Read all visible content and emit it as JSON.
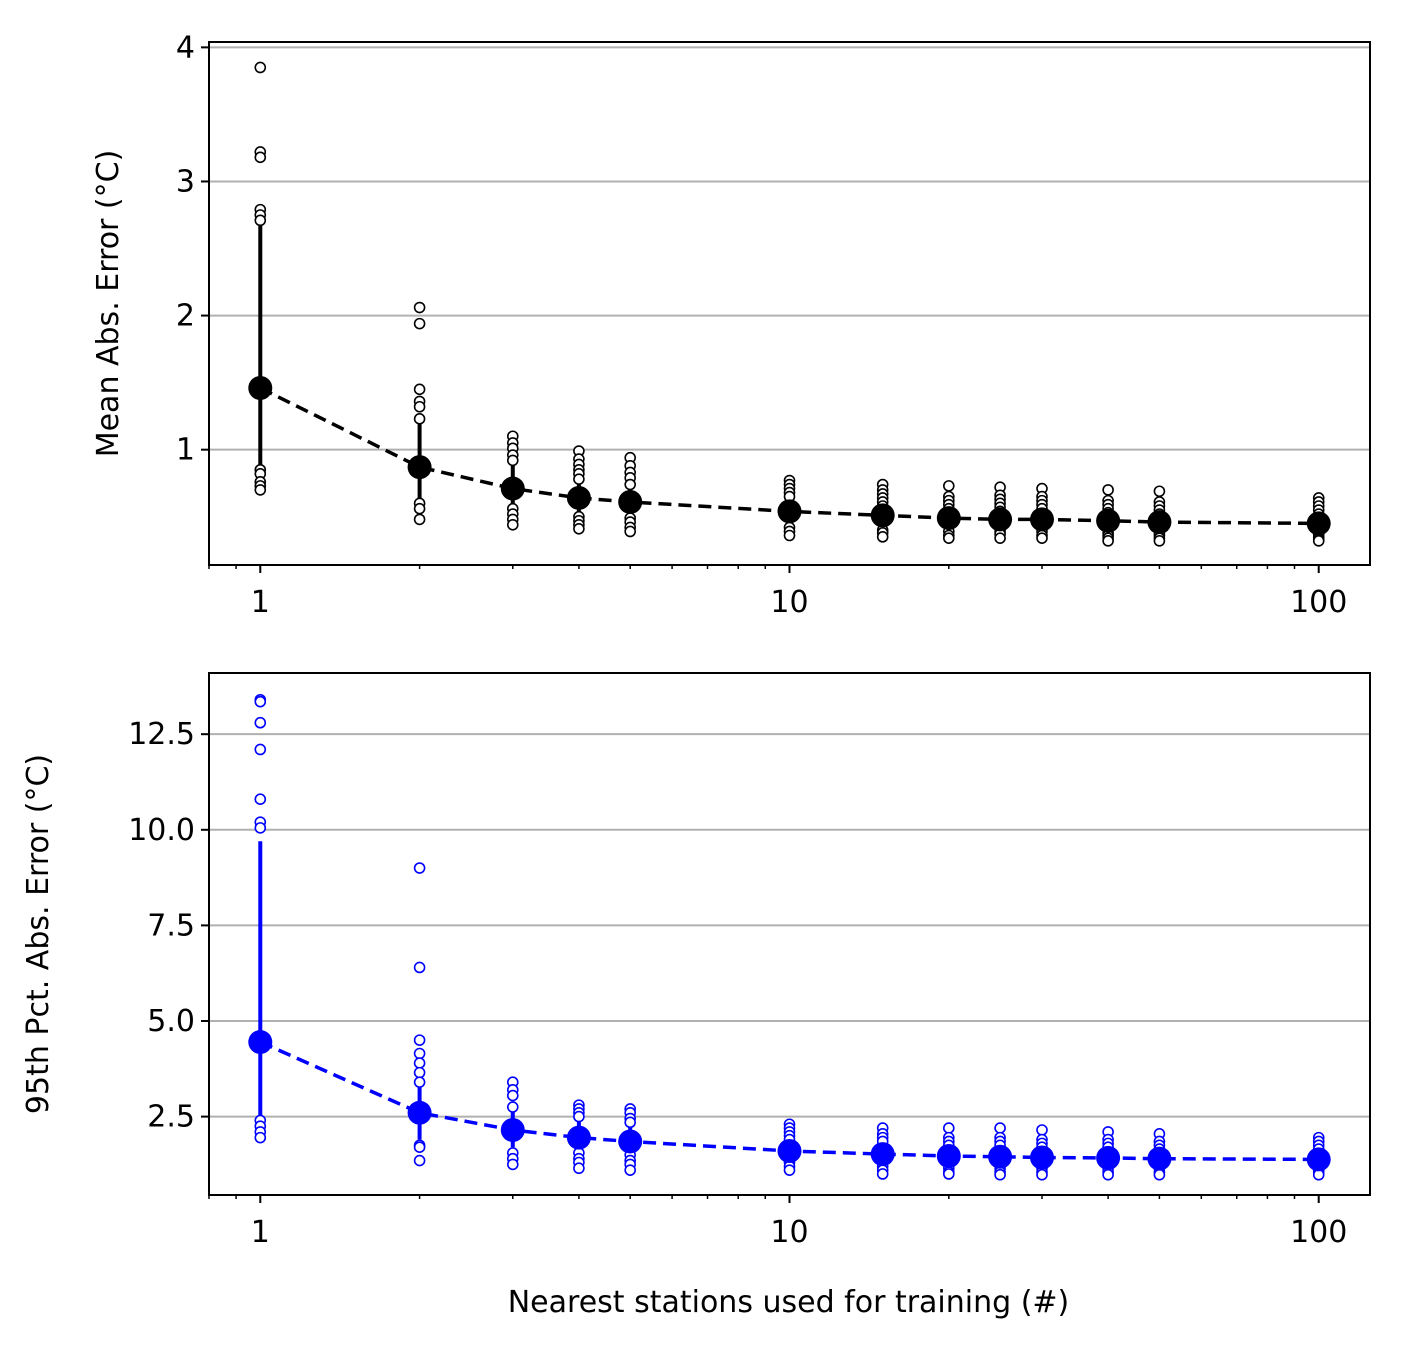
{
  "chart_data": [
    {
      "type": "scatter",
      "xlabel": "",
      "ylabel": "Mean Abs. Error (°C)",
      "xscale": "log",
      "xlim": [
        0.8,
        125
      ],
      "ylim": [
        0.14,
        4.04
      ],
      "xticks": [
        1,
        10,
        100
      ],
      "xtick_labels": [
        "1",
        "10",
        "100"
      ],
      "yticks": [
        1,
        2,
        3,
        4
      ],
      "ytick_labels": [
        "1",
        "2",
        "3",
        "4"
      ],
      "grid": "y",
      "color": "#000000",
      "x": [
        1,
        2,
        3,
        4,
        5,
        10,
        15,
        20,
        25,
        30,
        40,
        50,
        100
      ],
      "mean": [
        1.46,
        0.87,
        0.71,
        0.64,
        0.61,
        0.54,
        0.51,
        0.49,
        0.48,
        0.48,
        0.47,
        0.46,
        0.45
      ],
      "error_low": [
        0.87,
        0.62,
        0.54,
        0.5,
        0.5,
        0.45,
        0.42,
        0.4,
        0.4,
        0.4,
        0.39,
        0.39,
        0.38
      ],
      "error_high": [
        2.7,
        1.2,
        0.93,
        0.81,
        0.76,
        0.66,
        0.6,
        0.58,
        0.57,
        0.57,
        0.56,
        0.56,
        0.54
      ],
      "points": [
        [
          3.85,
          3.22,
          3.18,
          2.79,
          2.75,
          2.71,
          0.85,
          0.82,
          0.76,
          0.73,
          0.7
        ],
        [
          2.06,
          1.94,
          1.45,
          1.36,
          1.32,
          1.23,
          0.6,
          0.56,
          0.48
        ],
        [
          1.1,
          1.05,
          1.01,
          0.96,
          0.92,
          0.56,
          0.52,
          0.48,
          0.44
        ],
        [
          0.99,
          0.93,
          0.89,
          0.85,
          0.82,
          0.78,
          0.5,
          0.47,
          0.44,
          0.41
        ],
        [
          0.94,
          0.88,
          0.83,
          0.79,
          0.74,
          0.49,
          0.46,
          0.42,
          0.39
        ],
        [
          0.77,
          0.74,
          0.71,
          0.68,
          0.65,
          0.42,
          0.39,
          0.36
        ],
        [
          0.74,
          0.7,
          0.67,
          0.64,
          0.61,
          0.58,
          0.4,
          0.38,
          0.35
        ],
        [
          0.73,
          0.65,
          0.62,
          0.59,
          0.56,
          0.39,
          0.36,
          0.34
        ],
        [
          0.72,
          0.66,
          0.63,
          0.6,
          0.57,
          0.54,
          0.39,
          0.37,
          0.34
        ],
        [
          0.71,
          0.65,
          0.62,
          0.59,
          0.56,
          0.39,
          0.36,
          0.34
        ],
        [
          0.7,
          0.62,
          0.59,
          0.56,
          0.53,
          0.38,
          0.36,
          0.34,
          0.32
        ],
        [
          0.69,
          0.61,
          0.58,
          0.55,
          0.52,
          0.38,
          0.36,
          0.34,
          0.32
        ],
        [
          0.64,
          0.61,
          0.58,
          0.55,
          0.52,
          0.37,
          0.35,
          0.33,
          0.32
        ]
      ]
    },
    {
      "type": "scatter",
      "xlabel": "Nearest stations used for training (#)",
      "ylabel": "95th Pct. Abs. Error (°C)",
      "xscale": "log",
      "xlim": [
        0.8,
        125
      ],
      "ylim": [
        0.45,
        14.1
      ],
      "xticks": [
        1,
        10,
        100
      ],
      "xtick_labels": [
        "1",
        "10",
        "100"
      ],
      "yticks": [
        2.5,
        5.0,
        7.5,
        10.0,
        12.5
      ],
      "ytick_labels": [
        "2.5",
        "5.0",
        "7.5",
        "10.0",
        "12.5"
      ],
      "grid": "y",
      "color": "#0000ff",
      "x": [
        1,
        2,
        3,
        4,
        5,
        10,
        15,
        20,
        25,
        30,
        40,
        50,
        100
      ],
      "mean": [
        4.45,
        2.6,
        2.15,
        1.95,
        1.85,
        1.6,
        1.52,
        1.47,
        1.45,
        1.43,
        1.42,
        1.4,
        1.38
      ],
      "error_low": [
        2.5,
        1.9,
        1.7,
        1.6,
        1.55,
        1.35,
        1.3,
        1.25,
        1.25,
        1.22,
        1.2,
        1.2,
        1.18
      ],
      "error_high": [
        9.7,
        3.45,
        2.85,
        2.45,
        2.3,
        2.05,
        1.85,
        1.8,
        1.75,
        1.72,
        1.7,
        1.68,
        1.65
      ],
      "points": [
        [
          13.4,
          13.35,
          12.8,
          12.1,
          10.8,
          10.2,
          10.05,
          2.4,
          2.25,
          2.1,
          1.95
        ],
        [
          9.0,
          6.4,
          4.5,
          4.15,
          3.9,
          3.65,
          3.4,
          1.75,
          1.7,
          1.35
        ],
        [
          3.4,
          3.2,
          3.05,
          2.75,
          1.55,
          1.4,
          1.25
        ],
        [
          2.8,
          2.7,
          2.6,
          2.5,
          1.55,
          1.4,
          1.3,
          1.15
        ],
        [
          2.7,
          2.6,
          2.45,
          2.35,
          1.5,
          1.35,
          1.25,
          1.1
        ],
        [
          2.3,
          2.2,
          2.1,
          2.0,
          1.9,
          1.3,
          1.2,
          1.1
        ],
        [
          2.2,
          2.05,
          1.95,
          1.85,
          1.3,
          1.2,
          1.1,
          1.0
        ],
        [
          2.2,
          1.95,
          1.85,
          1.75,
          1.25,
          1.15,
          1.05,
          1.0
        ],
        [
          2.2,
          1.95,
          1.85,
          1.75,
          1.25,
          1.15,
          1.05,
          0.98
        ],
        [
          2.15,
          1.9,
          1.8,
          1.7,
          1.25,
          1.15,
          1.05,
          0.98
        ],
        [
          2.1,
          1.9,
          1.8,
          1.7,
          1.25,
          1.15,
          1.05,
          0.98
        ],
        [
          2.05,
          1.85,
          1.75,
          1.65,
          1.25,
          1.15,
          1.05,
          0.98
        ],
        [
          1.95,
          1.85,
          1.75,
          1.65,
          1.2,
          1.1,
          1.05,
          0.98
        ]
      ]
    }
  ]
}
